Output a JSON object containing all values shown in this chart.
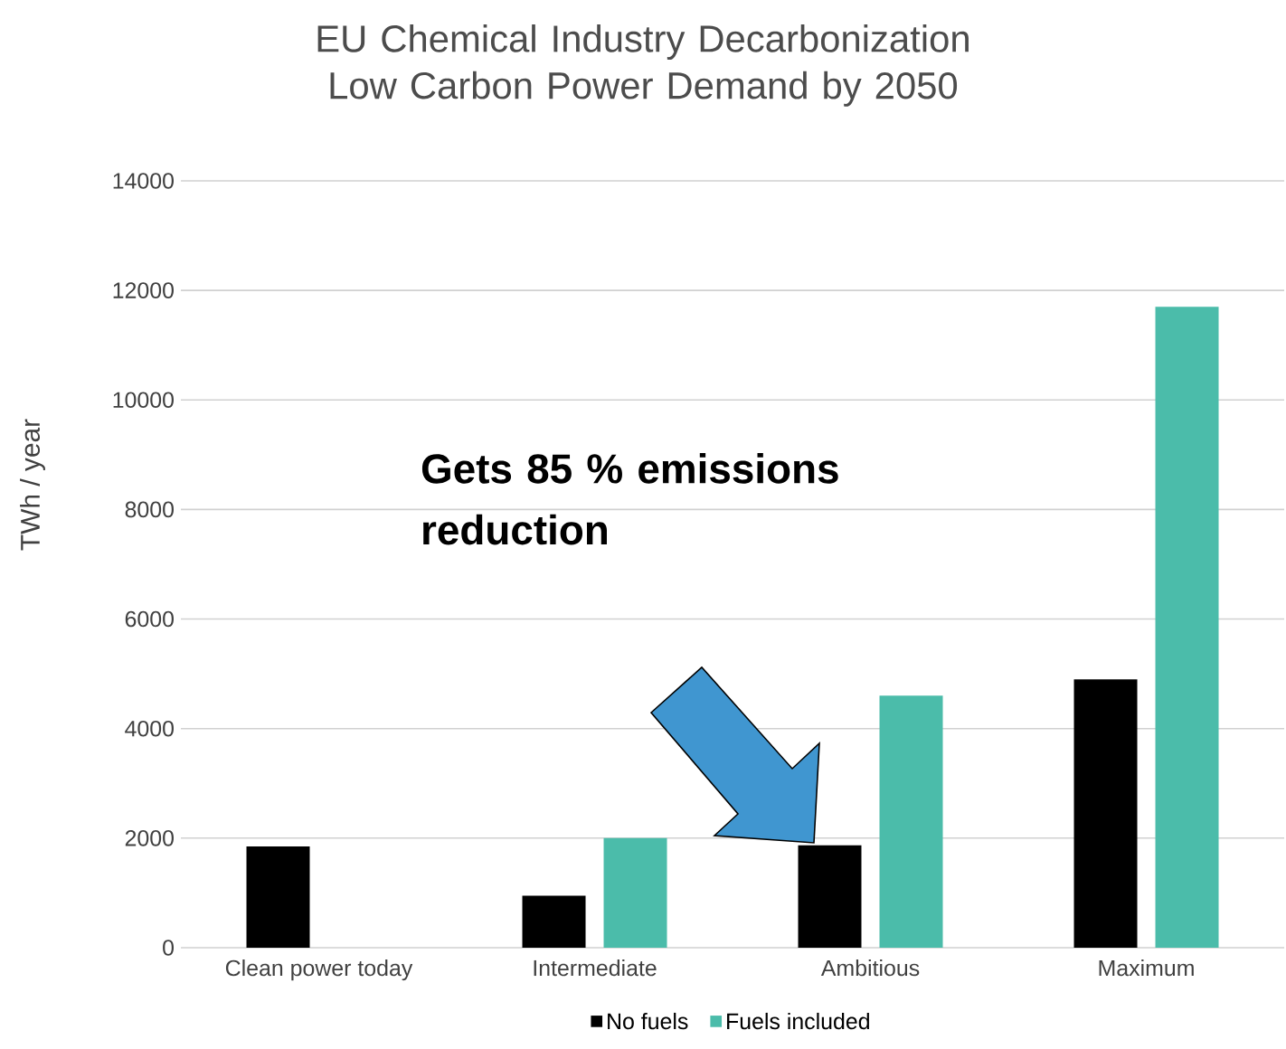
{
  "chart_data": {
    "type": "bar",
    "title": "EU Chemical Industry Decarbonization\nLow Carbon Power Demand by 2050",
    "ylabel": "TWh / year",
    "categories": [
      "Clean power today",
      "Intermediate",
      "Ambitious",
      "Maximum"
    ],
    "series": [
      {
        "name": "No fuels",
        "color": "#000000",
        "values": [
          1850,
          950,
          1870,
          4900
        ]
      },
      {
        "name": "Fuels included",
        "color": "#4bbcaa",
        "values": [
          null,
          2000,
          4600,
          11700
        ]
      }
    ],
    "ylim": [
      0,
      14000
    ],
    "yticks": [
      0,
      2000,
      4000,
      6000,
      8000,
      10000,
      12000,
      14000
    ],
    "grid": "y",
    "legend": "bottom",
    "annotations": [
      "Gets 85 % emissions reduction"
    ]
  }
}
